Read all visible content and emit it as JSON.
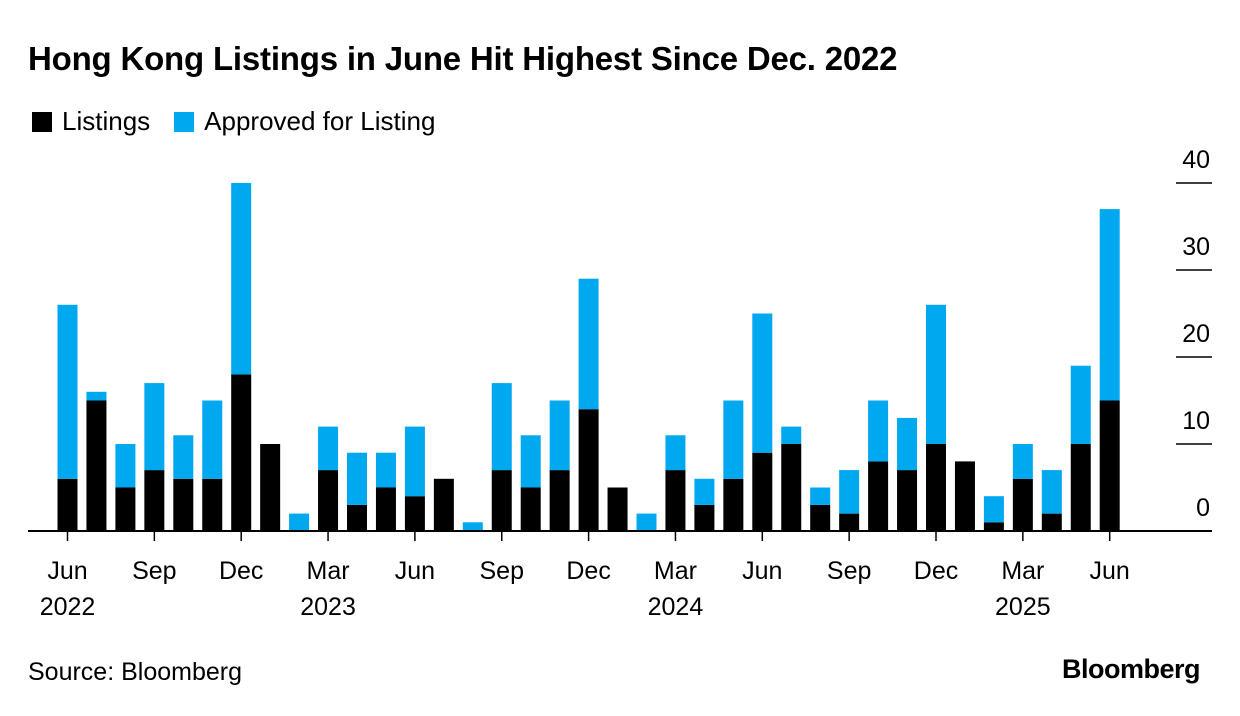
{
  "title": "Hong Kong Listings in June Hit Highest Since Dec. 2022",
  "legend": {
    "listings": "Listings",
    "approved": "Approved for Listing"
  },
  "colors": {
    "listings": "#000000",
    "approved": "#00a8f0",
    "axis": "#000000"
  },
  "source": "Source: Bloomberg",
  "brand": "Bloomberg",
  "chart_data": {
    "type": "bar",
    "stacked": true,
    "categories": [
      "Jun 2022",
      "Jul 2022",
      "Aug 2022",
      "Sep 2022",
      "Oct 2022",
      "Nov 2022",
      "Dec 2022",
      "Jan 2023",
      "Feb 2023",
      "Mar 2023",
      "Apr 2023",
      "May 2023",
      "Jun 2023",
      "Jul 2023",
      "Aug 2023",
      "Sep 2023",
      "Oct 2023",
      "Nov 2023",
      "Dec 2023",
      "Jan 2024",
      "Feb 2024",
      "Mar 2024",
      "Apr 2024",
      "May 2024",
      "Jun 2024",
      "Jul 2024",
      "Aug 2024",
      "Sep 2024",
      "Oct 2024",
      "Nov 2024",
      "Dec 2024",
      "Jan 2025",
      "Feb 2025",
      "Mar 2025",
      "Apr 2025",
      "May 2025",
      "Jun 2025"
    ],
    "series": [
      {
        "name": "Listings",
        "values": [
          6,
          15,
          5,
          7,
          6,
          6,
          18,
          10,
          0,
          7,
          3,
          5,
          4,
          6,
          0,
          7,
          5,
          7,
          14,
          5,
          0,
          7,
          3,
          6,
          9,
          10,
          3,
          2,
          8,
          7,
          10,
          8,
          1,
          6,
          2,
          10,
          15
        ]
      },
      {
        "name": "Approved for Listing",
        "values": [
          20,
          1,
          5,
          10,
          5,
          9,
          22,
          0,
          2,
          5,
          6,
          4,
          8,
          0,
          1,
          10,
          6,
          8,
          15,
          0,
          2,
          4,
          3,
          9,
          16,
          2,
          2,
          5,
          7,
          6,
          16,
          0,
          3,
          4,
          5,
          9,
          22
        ]
      }
    ],
    "ylim": [
      0,
      40
    ],
    "yticks": [
      "0",
      "10",
      "20",
      "30",
      "40"
    ],
    "xtick_labels": [
      {
        "index": 0,
        "month": "Jun",
        "year": "2022"
      },
      {
        "index": 3,
        "month": "Sep",
        "year": ""
      },
      {
        "index": 6,
        "month": "Dec",
        "year": ""
      },
      {
        "index": 9,
        "month": "Mar",
        "year": "2023"
      },
      {
        "index": 12,
        "month": "Jun",
        "year": ""
      },
      {
        "index": 15,
        "month": "Sep",
        "year": ""
      },
      {
        "index": 18,
        "month": "Dec",
        "year": ""
      },
      {
        "index": 21,
        "month": "Mar",
        "year": "2024"
      },
      {
        "index": 24,
        "month": "Jun",
        "year": ""
      },
      {
        "index": 27,
        "month": "Sep",
        "year": ""
      },
      {
        "index": 30,
        "month": "Dec",
        "year": ""
      },
      {
        "index": 33,
        "month": "Mar",
        "year": "2025"
      },
      {
        "index": 36,
        "month": "Jun",
        "year": ""
      }
    ],
    "grid": false,
    "yaxis_position": "right",
    "legend_position": "top-left"
  }
}
